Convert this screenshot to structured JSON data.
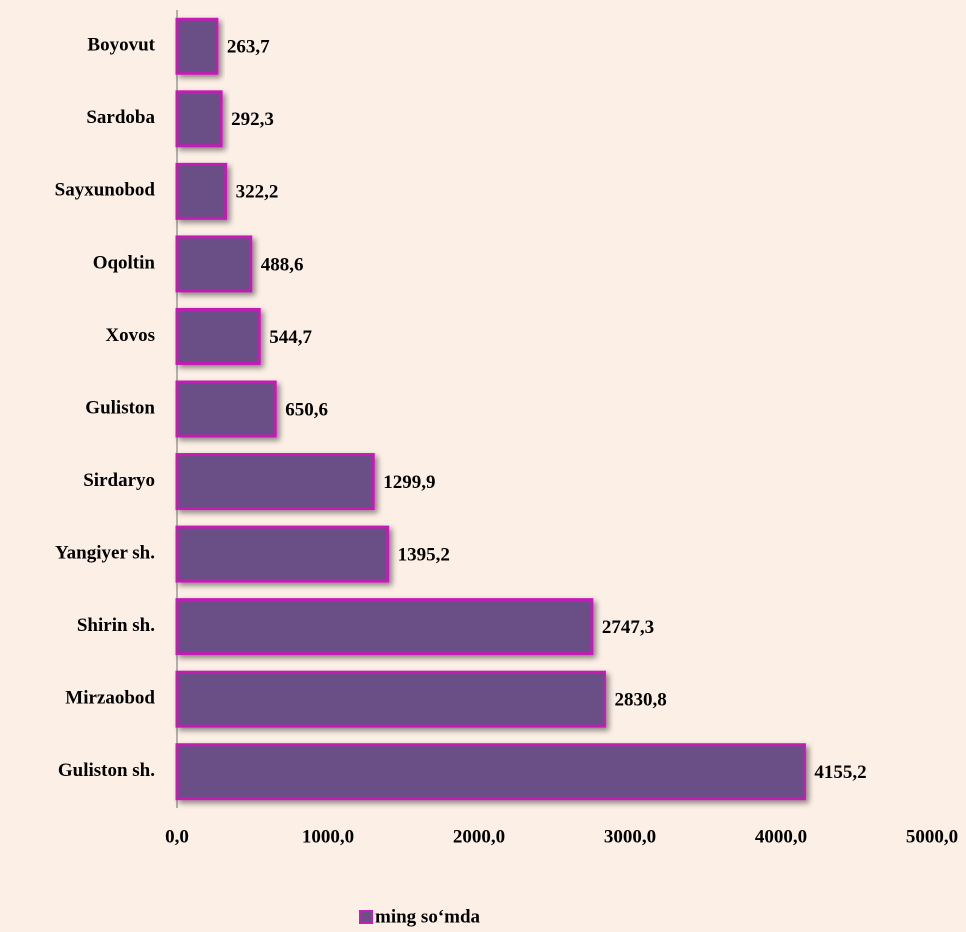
{
  "chart_data": {
    "type": "barh",
    "categories": [
      "Boyovut",
      "Sardoba",
      "Sayxunobod",
      "Oqoltin",
      "Xovos",
      "Guliston",
      "Sirdaryo",
      "Yangiyer sh.",
      "Shirin sh.",
      "Mirzaobod",
      "Guliston sh."
    ],
    "series": [
      {
        "name": "ming so‘mda",
        "color": "#6b5086",
        "edge_color": "#c21fb4",
        "values": [
          263.7,
          292.3,
          322.2,
          488.6,
          544.7,
          650.6,
          1299.9,
          1395.2,
          2747.3,
          2830.8,
          4155.2
        ],
        "value_labels": [
          "263,7",
          "292,3",
          "322,2",
          "488,6",
          "544,7",
          "650,6",
          "1299,9",
          "1395,2",
          "2747,3",
          "2830,8",
          "4155,2"
        ]
      }
    ],
    "xlim": [
      0,
      5000
    ],
    "xticks": [
      {
        "value": 0,
        "label": "0,0"
      },
      {
        "value": 1000,
        "label": "1000,0"
      },
      {
        "value": 2000,
        "label": "2000,0"
      },
      {
        "value": 3000,
        "label": "3000,0"
      },
      {
        "value": 4000,
        "label": "4000,0"
      },
      {
        "value": 5000,
        "label": "5000,0"
      }
    ],
    "legend": "bottom"
  }
}
